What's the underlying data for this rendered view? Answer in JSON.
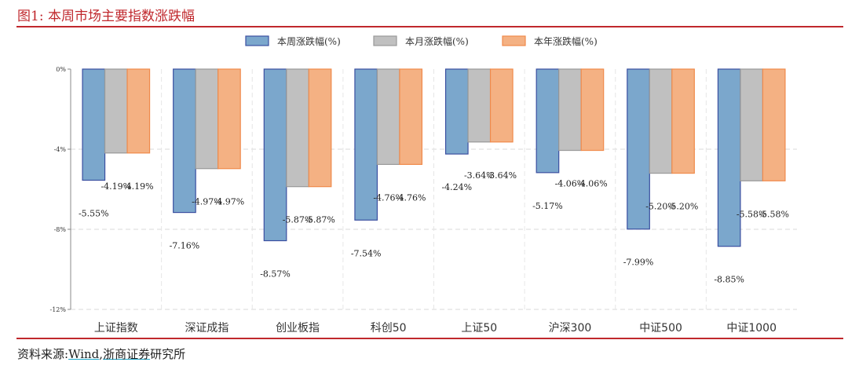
{
  "figure_title": "图1:   本周市场主要指数涨跌幅",
  "source": {
    "prefix": "资料来源:",
    "wind": "Wind",
    "sep": ",",
    "firm": "浙商证券",
    "suffix": "研究所"
  },
  "chart_data": {
    "type": "bar",
    "categories": [
      "上证指数",
      "深证成指",
      "创业板指",
      "科创50",
      "上证50",
      "沪深300",
      "中证500",
      "中证1000"
    ],
    "series": [
      {
        "name": "本周涨跌幅(%)",
        "color": "#7ba7cc",
        "stroke": "#3a4fa0",
        "values": [
          -5.55,
          -7.16,
          -8.57,
          -7.54,
          -4.24,
          -5.17,
          -7.99,
          -8.85
        ]
      },
      {
        "name": "本月涨跌幅(%)",
        "color": "#c0c0c0",
        "stroke": "#999999",
        "values": [
          -4.19,
          -4.97,
          -5.87,
          -4.76,
          -3.64,
          -4.06,
          -5.2,
          -5.58
        ]
      },
      {
        "name": "本年涨跌幅(%)",
        "color": "#f4b183",
        "stroke": "#f08a4b",
        "values": [
          -4.19,
          -4.97,
          -5.87,
          -4.76,
          -3.64,
          -4.06,
          -5.2,
          -5.58
        ]
      }
    ],
    "yticks": [
      "0%",
      "-4%",
      "-8%",
      "-12%"
    ],
    "ytick_values": [
      0,
      -4,
      -8,
      -12
    ],
    "ylim": [
      -12,
      0
    ],
    "legend": "top-center",
    "grid": true
  }
}
